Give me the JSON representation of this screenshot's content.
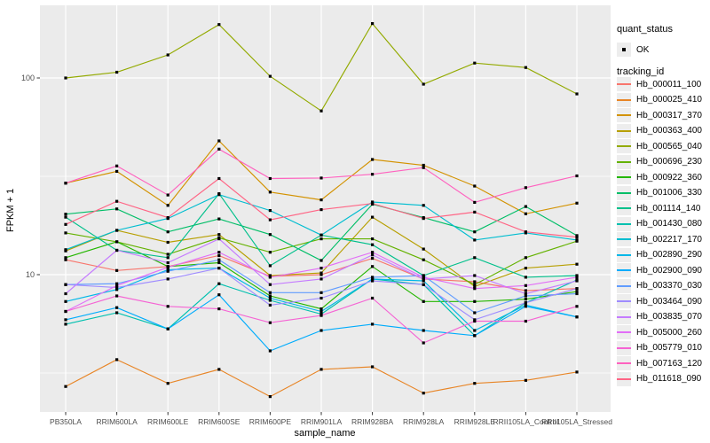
{
  "y_axis": {
    "title": "FPKM + 1",
    "ticks": [
      {
        "label": "100",
        "value": 100
      },
      {
        "label": "10",
        "value": 10
      }
    ]
  },
  "x_axis": {
    "title": "sample_name",
    "categories": [
      "PB350LA",
      "RRIM600LA",
      "RRIM600LE",
      "RRIM600SE",
      "RRIM600PE",
      "RRIM901LA",
      "RRIM928BA",
      "RRIM928LA",
      "RRIM928LE",
      "RRII105LA_Control",
      "RRII105LA_Stressed"
    ]
  },
  "legend": {
    "quant_status": {
      "title": "quant_status",
      "items": [
        {
          "label": "OK",
          "symbol": "black-square-point"
        }
      ]
    },
    "tracking_id": {
      "title": "tracking_id"
    }
  },
  "style_colors": {
    "panel_background": "#EBEBEB",
    "gridline": "#FFFFFF",
    "axis_text": "#4D4D4D",
    "point": "#000000",
    "legend_key_background": "#EDEDED"
  },
  "chart_data": {
    "type": "line",
    "title": "",
    "xlabel": "sample_name",
    "ylabel": "FPKM + 1",
    "yscale": "log10",
    "ylim": [
      2.07,
      229
    ],
    "y_major_ticks": [
      100,
      10
    ],
    "y_minor_gridlines": [
      31.62,
      3.162
    ],
    "grid": true,
    "legend_position": "right",
    "point_shape": "small black square (quant_status = OK)",
    "categories": [
      "PB350LA",
      "RRIM600LA",
      "RRIM600LE",
      "RRIM600SE",
      "RRIM600PE",
      "RRIM901LA",
      "RRIM928BA",
      "RRIM928LA",
      "RRIM928LE",
      "RRII105LA_Control",
      "RRII105LA_Stressed"
    ],
    "series": [
      {
        "name": "Hb_000011_100",
        "color": "#F8766D",
        "values": [
          11.9,
          10.5,
          11.0,
          12.5,
          9.8,
          10.0,
          12.1,
          9.5,
          9.2,
          8.3,
          8.5
        ]
      },
      {
        "name": "Hb_000025_410",
        "color": "#E88526",
        "values": [
          2.7,
          3.7,
          2.8,
          3.3,
          2.4,
          3.3,
          3.4,
          2.5,
          2.8,
          2.9,
          3.2
        ]
      },
      {
        "name": "Hb_000317_370",
        "color": "#D39200",
        "values": [
          29.2,
          33.5,
          22.5,
          47.9,
          26.3,
          24.0,
          38.5,
          36.0,
          28.2,
          20.4,
          23.1
        ]
      },
      {
        "name": "Hb_000363_400",
        "color": "#B79F00",
        "values": [
          13.2,
          16.8,
          14.6,
          16.0,
          9.9,
          10.2,
          19.6,
          13.5,
          8.7,
          10.8,
          11.3
        ]
      },
      {
        "name": "Hb_000565_040",
        "color": "#93AA00",
        "values": [
          100,
          107,
          131,
          187,
          102,
          68,
          189,
          93,
          119,
          113,
          83
        ]
      },
      {
        "name": "Hb_000696_230",
        "color": "#64B200",
        "values": [
          16.3,
          14.7,
          12.7,
          15.4,
          13.0,
          15.2,
          15.2,
          11.9,
          8.9,
          12.2,
          14.8
        ]
      },
      {
        "name": "Hb_000922_360",
        "color": "#24B700",
        "values": [
          12.2,
          14.7,
          11.0,
          11.5,
          7.8,
          6.7,
          11.0,
          7.3,
          7.3,
          7.5,
          8.2
        ]
      },
      {
        "name": "Hb_001006_330",
        "color": "#00BE67",
        "values": [
          20.3,
          21.6,
          16.5,
          19.2,
          16.0,
          11.8,
          22.8,
          19.5,
          16.5,
          22.2,
          15.8
        ]
      },
      {
        "name": "Hb_001114_140",
        "color": "#00C08B",
        "values": [
          19.6,
          13.3,
          12.2,
          25.8,
          11.1,
          15.9,
          14.2,
          9.9,
          12.2,
          9.7,
          9.9
        ]
      },
      {
        "name": "Hb_001430_080",
        "color": "#00C0AF",
        "values": [
          5.6,
          6.4,
          5.3,
          9.0,
          7.4,
          6.3,
          9.5,
          8.9,
          4.9,
          7.2,
          9.4
        ]
      },
      {
        "name": "Hb_002217_170",
        "color": "#00BDD0",
        "values": [
          13.4,
          16.8,
          19.3,
          25.5,
          21.2,
          15.9,
          23.4,
          22.5,
          15.0,
          16.3,
          15.0
        ]
      },
      {
        "name": "Hb_002890_290",
        "color": "#00B7E8",
        "values": [
          7.3,
          8.4,
          10.6,
          10.8,
          7.6,
          6.5,
          9.5,
          9.3,
          5.2,
          7.0,
          6.1
        ]
      },
      {
        "name": "Hb_002900_090",
        "color": "#00ACFC",
        "values": [
          5.9,
          6.8,
          5.3,
          7.9,
          4.1,
          5.2,
          5.6,
          5.2,
          4.9,
          6.9,
          6.1
        ]
      },
      {
        "name": "Hb_003370_030",
        "color": "#619CFF",
        "values": [
          8.9,
          9.0,
          10.4,
          11.9,
          8.1,
          8.1,
          9.7,
          9.9,
          6.4,
          7.8,
          8.0
        ]
      },
      {
        "name": "Hb_003464_090",
        "color": "#9F8CFF",
        "values": [
          8.9,
          8.6,
          9.5,
          10.8,
          7.0,
          7.6,
          9.3,
          8.9,
          5.9,
          7.2,
          8.5
        ]
      },
      {
        "name": "Hb_003835_070",
        "color": "#C57CFF",
        "values": [
          8.0,
          13.3,
          11.5,
          15.2,
          8.9,
          9.5,
          12.6,
          9.5,
          9.9,
          8.0,
          9.3
        ]
      },
      {
        "name": "Hb_005000_260",
        "color": "#E26EF7",
        "values": [
          6.5,
          8.8,
          10.9,
          13.0,
          9.7,
          10.8,
          13.0,
          9.7,
          8.5,
          8.8,
          9.7
        ]
      },
      {
        "name": "Hb_005779_010",
        "color": "#F564D4",
        "values": [
          6.5,
          7.8,
          6.9,
          6.7,
          5.7,
          6.2,
          7.6,
          4.5,
          5.8,
          5.8,
          6.9
        ]
      },
      {
        "name": "Hb_007163_120",
        "color": "#FF62BF",
        "values": [
          29.2,
          35.7,
          25.4,
          43.5,
          30.8,
          31.0,
          32.4,
          35.0,
          23.3,
          27.7,
          31.8
        ]
      },
      {
        "name": "Hb_011618_090",
        "color": "#FF6585",
        "values": [
          18.0,
          23.6,
          19.5,
          30.8,
          19.0,
          21.4,
          23.0,
          19.3,
          20.8,
          16.5,
          15.5
        ]
      }
    ]
  }
}
